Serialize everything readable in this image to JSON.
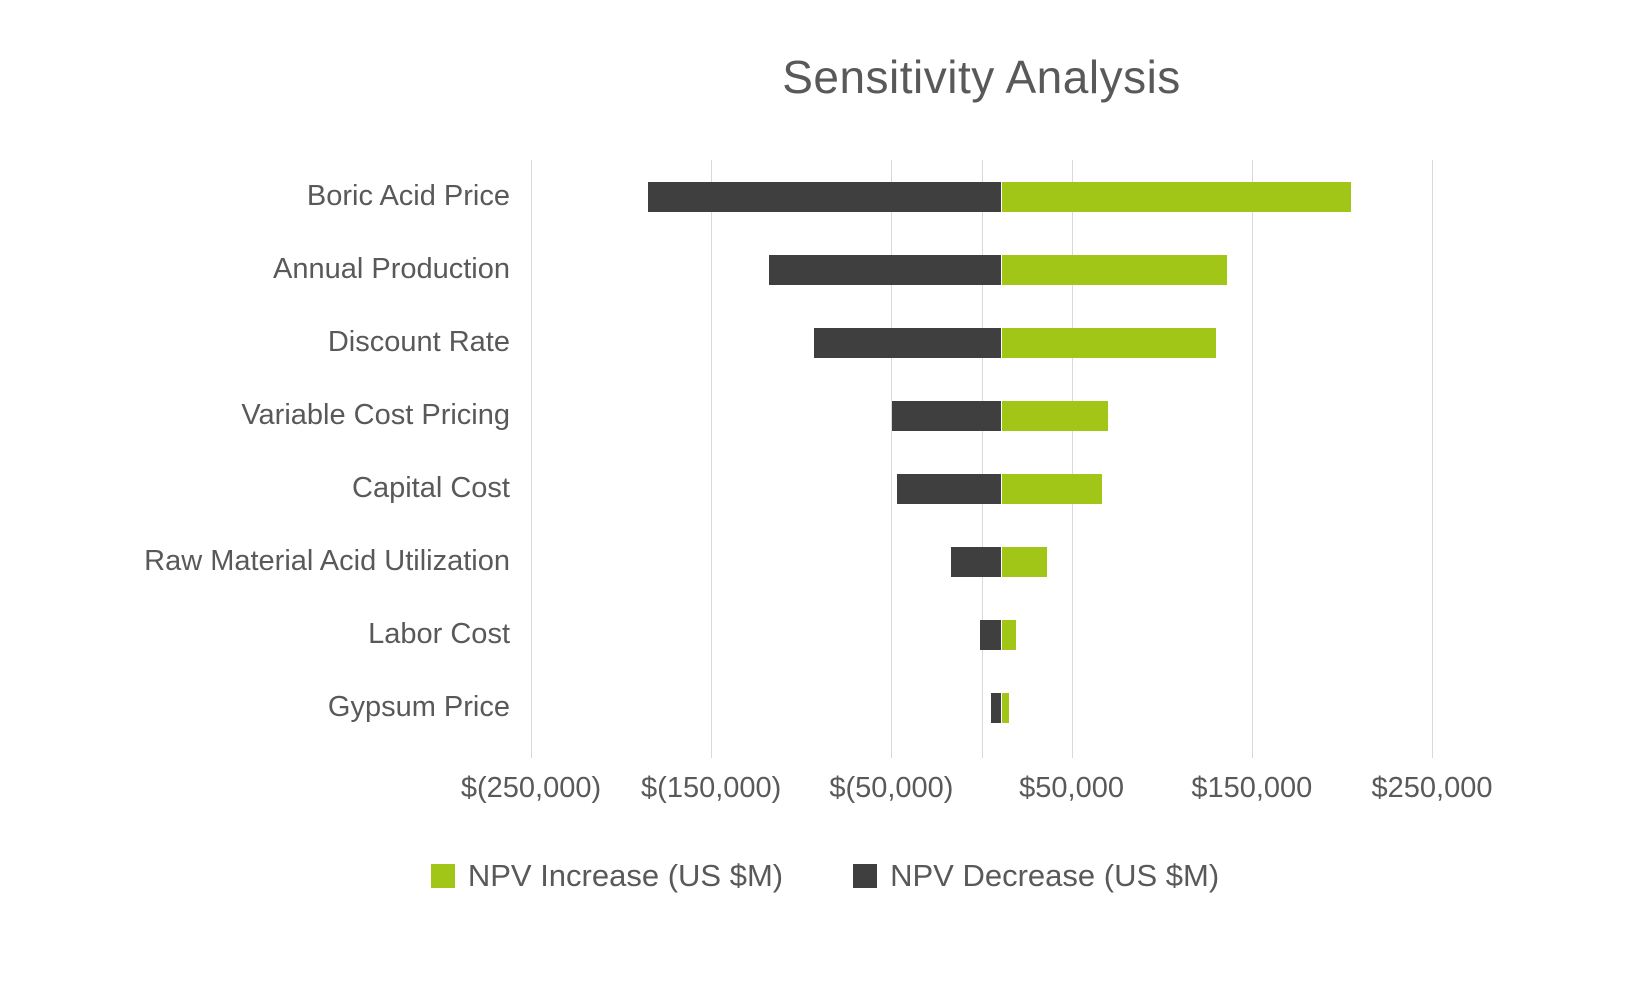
{
  "title": "Sensitivity Analysis",
  "colors": {
    "increase": "#a2c617",
    "decrease": "#3f3f3f",
    "text": "#595959",
    "gridline": "#d9d9d9",
    "background": "#ffffff"
  },
  "chart_data": {
    "type": "bar",
    "orientation": "horizontal",
    "subtype": "tornado",
    "title": "Sensitivity Analysis",
    "xlabel": "",
    "ylabel": "",
    "xlim": [
      -250000,
      250000
    ],
    "grid": "vertical",
    "legend_position": "bottom",
    "categories": [
      "Boric Acid Price",
      "Annual Production",
      "Discount Rate",
      "Variable Cost Pricing",
      "Capital Cost",
      "Raw Material Acid Utilization",
      "Labor Cost",
      "Gypsum Price"
    ],
    "series": [
      {
        "name": "NPV Increase (US $M)",
        "color": "#a2c617",
        "values": [
          194000,
          125000,
          119000,
          59000,
          56000,
          25000,
          8000,
          4000
        ]
      },
      {
        "name": "NPV Decrease (US $M)",
        "color": "#3f3f3f",
        "values": [
          -196000,
          -129000,
          -104000,
          -61000,
          -58000,
          -28000,
          -12000,
          -6000
        ]
      }
    ],
    "x_ticks": [
      {
        "value": -250000,
        "label": "$(250,000)"
      },
      {
        "value": -150000,
        "label": "$(150,000)"
      },
      {
        "value": -50000,
        "label": "$(50,000)"
      },
      {
        "value": 50000,
        "label": "$50,000"
      },
      {
        "value": 150000,
        "label": "$150,000"
      },
      {
        "value": 250000,
        "label": "$250,000"
      }
    ]
  },
  "legend": {
    "increase_label": "NPV Increase (US $M)",
    "decrease_label": "NPV Decrease (US $M)"
  }
}
